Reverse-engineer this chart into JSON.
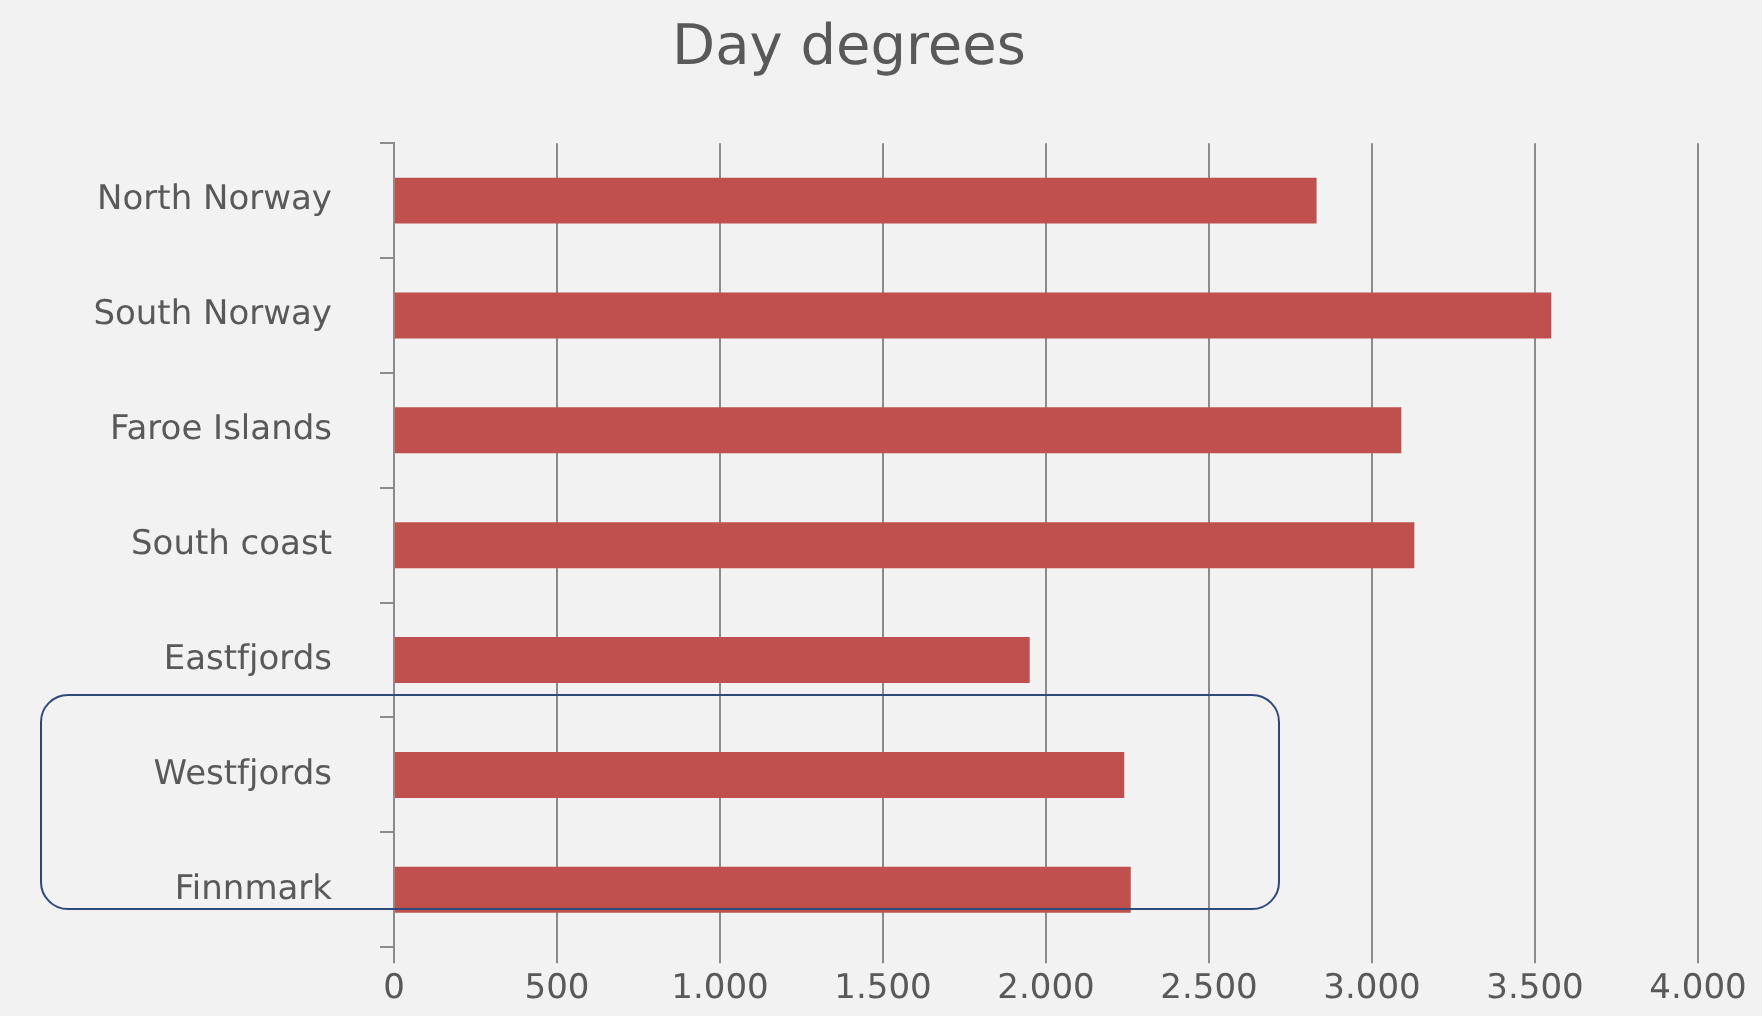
{
  "chart_data": {
    "type": "bar",
    "orientation": "horizontal",
    "title": "Day degrees",
    "categories": [
      "North Norway",
      "South Norway",
      "Faroe Islands",
      "South coast",
      "Eastfjords",
      "Westfjords",
      "Finnmark"
    ],
    "values": [
      2830,
      3550,
      3090,
      3130,
      1950,
      2240,
      2260
    ],
    "color": "#c0504d",
    "xlim": [
      0,
      4000
    ],
    "xticks": [
      0,
      500,
      {
        "value": 1000,
        "label": "1.000"
      },
      {
        "value": 1500,
        "label": "1.500"
      },
      {
        "value": 2000,
        "label": "2.000"
      },
      {
        "value": 2500,
        "label": "2.500"
      },
      {
        "value": 3000,
        "label": "3.000"
      },
      {
        "value": 3500,
        "label": "3.500"
      },
      {
        "value": 4000,
        "label": "4.000"
      }
    ],
    "grid": "x",
    "legend": false
  }
}
